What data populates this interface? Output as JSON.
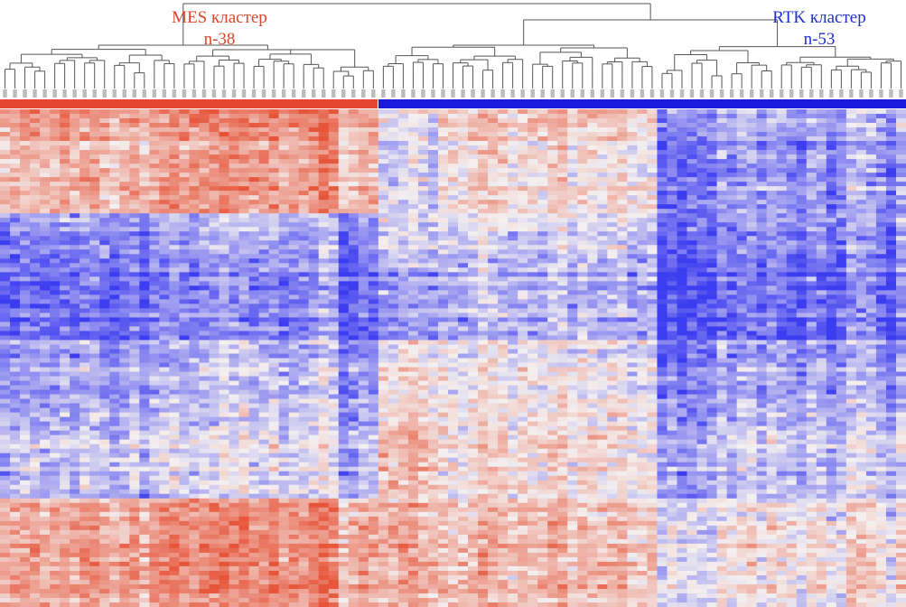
{
  "chart_data": {
    "type": "heatmap",
    "title": "",
    "clusters": [
      {
        "name": "MES кластер",
        "count_label": "n-38",
        "n": 38,
        "color": "#e8452f",
        "text_color": "#d9472b"
      },
      {
        "name": "RTK кластер",
        "count_label": "n-53",
        "n": 53,
        "color": "#1a1adc",
        "text_color": "#1f2fc8"
      }
    ],
    "n_samples": 91,
    "n_gene_rows": 110,
    "color_scale": {
      "low": "#3c3cf0",
      "mid": "#f4f0f0",
      "high": "#e6553a",
      "range": [
        -1,
        1
      ]
    },
    "row_blocks": [
      {
        "rows": [
          0,
          22
        ],
        "MES": 0.35,
        "RTK_left": -0.15,
        "RTK_mid": 0.1,
        "RTK_right": -0.45
      },
      {
        "rows": [
          23,
          34
        ],
        "MES": -0.6,
        "RTK_left": -0.2,
        "RTK_mid": -0.2,
        "RTK_right": -0.55
      },
      {
        "rows": [
          35,
          50
        ],
        "MES": -0.75,
        "RTK_left": -0.45,
        "RTK_mid": -0.35,
        "RTK_right": -0.7
      },
      {
        "rows": [
          51,
          68
        ],
        "MES": -0.5,
        "RTK_left": 0.05,
        "RTK_mid": -0.05,
        "RTK_right": -0.4
      },
      {
        "rows": [
          69,
          85
        ],
        "MES": -0.3,
        "RTK_left": 0.35,
        "RTK_mid": 0.1,
        "RTK_right": -0.2
      },
      {
        "rows": [
          86,
          109
        ],
        "MES": 0.45,
        "RTK_left": 0.4,
        "RTK_mid": 0.3,
        "RTK_right": 0.1
      }
    ]
  }
}
